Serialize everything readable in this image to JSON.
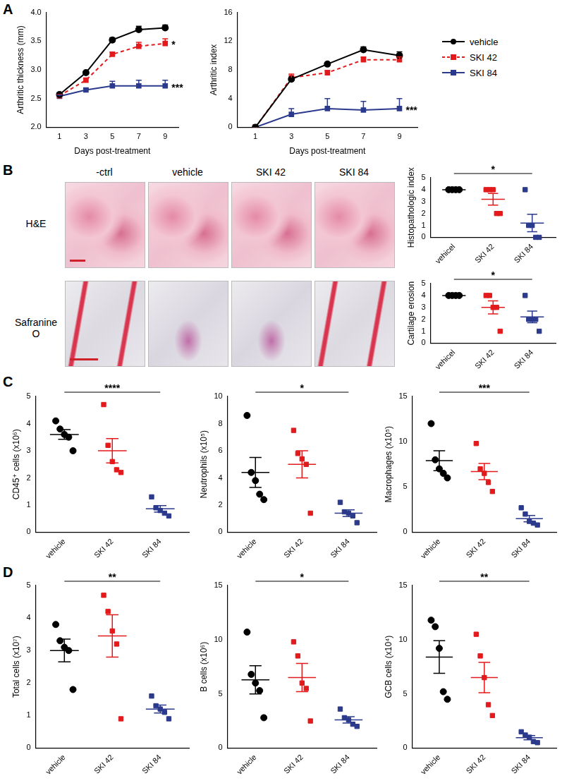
{
  "panel_labels": [
    "A",
    "B",
    "C",
    "D"
  ],
  "histology": {
    "columns": [
      "-ctrl",
      "vehicle",
      "SKI 42",
      "SKI 84"
    ],
    "rows": [
      "H&E",
      "Safranine O"
    ]
  },
  "chart_data": [
    {
      "type": "line",
      "x_label": "Days post-treatment",
      "y_label": "Arthritic thickness (mm)",
      "categories": [
        "1",
        "3",
        "5",
        "7",
        "9"
      ],
      "ylim": [
        2,
        4
      ],
      "yticks": [
        {
          "value": 2,
          "label": "2.0"
        },
        {
          "value": 2.5,
          "label": "2.5"
        },
        {
          "value": 3,
          "label": "3.0"
        },
        {
          "value": 3.5,
          "label": "3.5"
        },
        {
          "value": 4,
          "label": "4.0"
        }
      ],
      "grid": false,
      "series": [
        {
          "name": "vehicle",
          "color": "#000000",
          "marker": "circle",
          "line_style": "solid",
          "values": [
            2.57,
            2.95,
            3.52,
            3.7,
            3.73
          ],
          "error": [
            0.03,
            0.02,
            0.04,
            0.06,
            0.05
          ]
        },
        {
          "name": "SKI 42",
          "color": "#e31a1c",
          "marker": "square",
          "line_style": "dashed",
          "values": [
            2.55,
            2.82,
            3.27,
            3.41,
            3.46
          ],
          "error": [
            0.02,
            0.03,
            0.04,
            0.07,
            0.08
          ]
        },
        {
          "name": "SKI 84",
          "color": "#2b3a8c",
          "marker": "square",
          "line_style": "solid",
          "values": [
            2.54,
            2.65,
            2.72,
            2.72,
            2.72
          ],
          "error": [
            0.02,
            0.03,
            0.08,
            0.1,
            0.1
          ]
        }
      ],
      "annotations": [
        {
          "text": "*",
          "series": "SKI 42"
        },
        {
          "text": "***",
          "series": "SKI 84"
        }
      ]
    },
    {
      "type": "line",
      "x_label": "Days post-treatment",
      "y_label": "Arthritic index",
      "categories": [
        "1",
        "3",
        "5",
        "7",
        "9"
      ],
      "ylim": [
        0,
        16
      ],
      "yticks": [
        0,
        4,
        8,
        12,
        16
      ],
      "grid": false,
      "legend": "right",
      "series": [
        {
          "name": "vehicle",
          "color": "#000000",
          "marker": "circle",
          "line_style": "solid",
          "values": [
            0,
            6.7,
            8.8,
            10.8,
            10.0
          ],
          "error": [
            0,
            0.2,
            0.2,
            0.4,
            0.5
          ]
        },
        {
          "name": "SKI 42",
          "color": "#e31a1c",
          "marker": "square",
          "line_style": "dashed",
          "values": [
            0,
            6.9,
            7.6,
            9.4,
            9.4
          ],
          "error": [
            0,
            0.5,
            0.3,
            0.4,
            0.4
          ]
        },
        {
          "name": "SKI 84",
          "color": "#2b3a8c",
          "marker": "square",
          "line_style": "solid",
          "values": [
            0,
            1.8,
            2.6,
            2.4,
            2.6
          ],
          "error": [
            0,
            0.8,
            1.4,
            1.2,
            1.4
          ]
        }
      ],
      "annotations": [
        {
          "text": "***",
          "series": "SKI 84"
        }
      ]
    },
    {
      "type": "dot",
      "y_label": "Histopathologic index",
      "ylim": [
        0,
        5
      ],
      "yticks": [
        0,
        1,
        2,
        3,
        4,
        5
      ],
      "grid": false,
      "series": [
        {
          "name": "vehicel",
          "color": "#000000",
          "marker": "circle",
          "values": [
            4,
            4,
            4,
            4
          ],
          "mean": 4,
          "error": 0
        },
        {
          "name": "SKI 42",
          "color": "#e31a1c",
          "marker": "square",
          "values": [
            4,
            4,
            4,
            2,
            2
          ],
          "mean": 3.2,
          "error": 0.49
        },
        {
          "name": "SKI 84",
          "color": "#2b3a8c",
          "marker": "square",
          "values": [
            4,
            1,
            1,
            0,
            0
          ],
          "mean": 1.2,
          "error": 0.73
        }
      ],
      "annotations": [
        {
          "text": "*",
          "from": "vehicel",
          "to": "SKI 84"
        }
      ]
    },
    {
      "type": "dot",
      "y_label": "Cartilage erosion",
      "ylim": [
        0,
        5
      ],
      "yticks": [
        0,
        1,
        2,
        3,
        4,
        5
      ],
      "grid": false,
      "series": [
        {
          "name": "vehicel",
          "color": "#000000",
          "marker": "circle",
          "values": [
            4,
            4,
            4,
            4
          ],
          "mean": 4,
          "error": 0
        },
        {
          "name": "SKI 42",
          "color": "#e31a1c",
          "marker": "square",
          "values": [
            4,
            4,
            3,
            3,
            1
          ],
          "mean": 3.0,
          "error": 0.55
        },
        {
          "name": "SKI 84",
          "color": "#2b3a8c",
          "marker": "square",
          "values": [
            4,
            2,
            2,
            2,
            1
          ],
          "mean": 2.2,
          "error": 0.49
        }
      ],
      "annotations": [
        {
          "text": "*",
          "from": "vehicel",
          "to": "SKI 84"
        }
      ]
    },
    {
      "type": "dot",
      "y_label": "CD45⁺ cells (x10⁶)",
      "ylim": [
        0,
        5
      ],
      "yticks": [
        0,
        1,
        2,
        3,
        4,
        5
      ],
      "grid": false,
      "series": [
        {
          "name": "vehicle",
          "color": "#000000",
          "marker": "circle",
          "values": [
            4.1,
            3.8,
            3.6,
            3.5,
            3.0
          ],
          "mean": 3.6,
          "error": 0.18
        },
        {
          "name": "SKI 42",
          "color": "#e31a1c",
          "marker": "square",
          "values": [
            4.7,
            3.2,
            2.6,
            2.3,
            2.2
          ],
          "mean": 3.0,
          "error": 0.45
        },
        {
          "name": "SKI 84",
          "color": "#2b3a8c",
          "marker": "square",
          "values": [
            1.3,
            0.9,
            0.8,
            0.7,
            0.6
          ],
          "mean": 0.86,
          "error": 0.12
        }
      ],
      "annotations": [
        {
          "text": "****",
          "from": "vehicle",
          "to": "SKI 84"
        }
      ]
    },
    {
      "type": "dot",
      "y_label": "Neutrophils (x10⁵)",
      "ylim": [
        0,
        10
      ],
      "yticks": [
        0,
        2,
        4,
        6,
        8,
        10
      ],
      "grid": false,
      "series": [
        {
          "name": "vehicle",
          "color": "#000000",
          "marker": "circle",
          "values": [
            8.6,
            4.4,
            3.8,
            2.8,
            2.4
          ],
          "mean": 4.4,
          "error": 1.1
        },
        {
          "name": "SKI 42",
          "color": "#e31a1c",
          "marker": "square",
          "values": [
            7.5,
            5.8,
            5.4,
            5.0,
            1.4
          ],
          "mean": 5.0,
          "error": 1.0
        },
        {
          "name": "SKI 84",
          "color": "#2b3a8c",
          "marker": "square",
          "values": [
            2.2,
            1.5,
            1.4,
            1.2,
            0.7
          ],
          "mean": 1.4,
          "error": 0.25
        }
      ],
      "annotations": [
        {
          "text": "*",
          "from": "vehicle",
          "to": "SKI 84"
        }
      ]
    },
    {
      "type": "dot",
      "y_label": "Macrophages (x10⁵)",
      "ylim": [
        0,
        15
      ],
      "yticks": [
        0,
        5,
        10,
        15
      ],
      "grid": false,
      "series": [
        {
          "name": "vehicle",
          "color": "#000000",
          "marker": "circle",
          "values": [
            12,
            8,
            7,
            6.5,
            6
          ],
          "mean": 7.9,
          "error": 1.1
        },
        {
          "name": "SKI 42",
          "color": "#e31a1c",
          "marker": "square",
          "values": [
            9.8,
            7,
            6.5,
            5.5,
            4.5
          ],
          "mean": 6.7,
          "error": 0.9
        },
        {
          "name": "SKI 84",
          "color": "#2b3a8c",
          "marker": "square",
          "values": [
            2.7,
            2,
            1.2,
            1,
            0.8
          ],
          "mean": 1.5,
          "error": 0.35
        }
      ],
      "annotations": [
        {
          "text": "***",
          "from": "vehicle",
          "to": "SKI 84"
        }
      ]
    },
    {
      "type": "dot",
      "y_label": "Total cells (x10⁷)",
      "ylim": [
        0,
        5
      ],
      "yticks": [
        0,
        1,
        2,
        3,
        4,
        5
      ],
      "grid": false,
      "series": [
        {
          "name": "vehicle",
          "color": "#000000",
          "marker": "circle",
          "values": [
            3.8,
            3.3,
            3.1,
            3.0,
            1.8
          ],
          "mean": 3.0,
          "error": 0.35
        },
        {
          "name": "SKI 42",
          "color": "#e31a1c",
          "marker": "square",
          "values": [
            4.7,
            4.2,
            3.6,
            3.2,
            0.9
          ],
          "mean": 3.45,
          "error": 0.65
        },
        {
          "name": "SKI 84",
          "color": "#2b3a8c",
          "marker": "square",
          "values": [
            1.6,
            1.3,
            1.2,
            1.1,
            0.9
          ],
          "mean": 1.2,
          "error": 0.12
        }
      ],
      "annotations": [
        {
          "text": "**",
          "from": "vehicle",
          "to": "SKI 84"
        }
      ]
    },
    {
      "type": "dot",
      "y_label": "B cells (x10⁶)",
      "ylim": [
        0,
        15
      ],
      "yticks": [
        0,
        5,
        10,
        15
      ],
      "grid": false,
      "series": [
        {
          "name": "vehicle",
          "color": "#000000",
          "marker": "circle",
          "values": [
            10.7,
            6.8,
            6.0,
            5.3,
            2.8
          ],
          "mean": 6.3,
          "error": 1.3
        },
        {
          "name": "SKI 42",
          "color": "#e31a1c",
          "marker": "square",
          "values": [
            9.8,
            8.5,
            6.0,
            5.5,
            2.5
          ],
          "mean": 6.5,
          "error": 1.3
        },
        {
          "name": "SKI 84",
          "color": "#2b3a8c",
          "marker": "square",
          "values": [
            3.6,
            2.8,
            2.6,
            2.2,
            2.0
          ],
          "mean": 2.6,
          "error": 0.3
        }
      ],
      "annotations": [
        {
          "text": "*",
          "from": "vehicle",
          "to": "SKI 84"
        }
      ]
    },
    {
      "type": "dot",
      "y_label": "GCB cells (x10⁴)",
      "ylim": [
        0,
        15
      ],
      "yticks": [
        0,
        5,
        10,
        15
      ],
      "grid": false,
      "series": [
        {
          "name": "vehicle",
          "color": "#000000",
          "marker": "circle",
          "values": [
            11.8,
            11.2,
            9.2,
            5.2,
            4.5
          ],
          "mean": 8.4,
          "error": 1.5
        },
        {
          "name": "SKI 42",
          "color": "#e31a1c",
          "marker": "square",
          "values": [
            10.5,
            8.5,
            6.5,
            4.0,
            3.0
          ],
          "mean": 6.5,
          "error": 1.4
        },
        {
          "name": "SKI 84",
          "color": "#2b3a8c",
          "marker": "square",
          "values": [
            1.5,
            1.2,
            1.0,
            0.6,
            0.5
          ],
          "mean": 0.96,
          "error": 0.2
        }
      ],
      "annotations": [
        {
          "text": "**",
          "from": "vehicle",
          "to": "SKI 84"
        }
      ]
    }
  ]
}
